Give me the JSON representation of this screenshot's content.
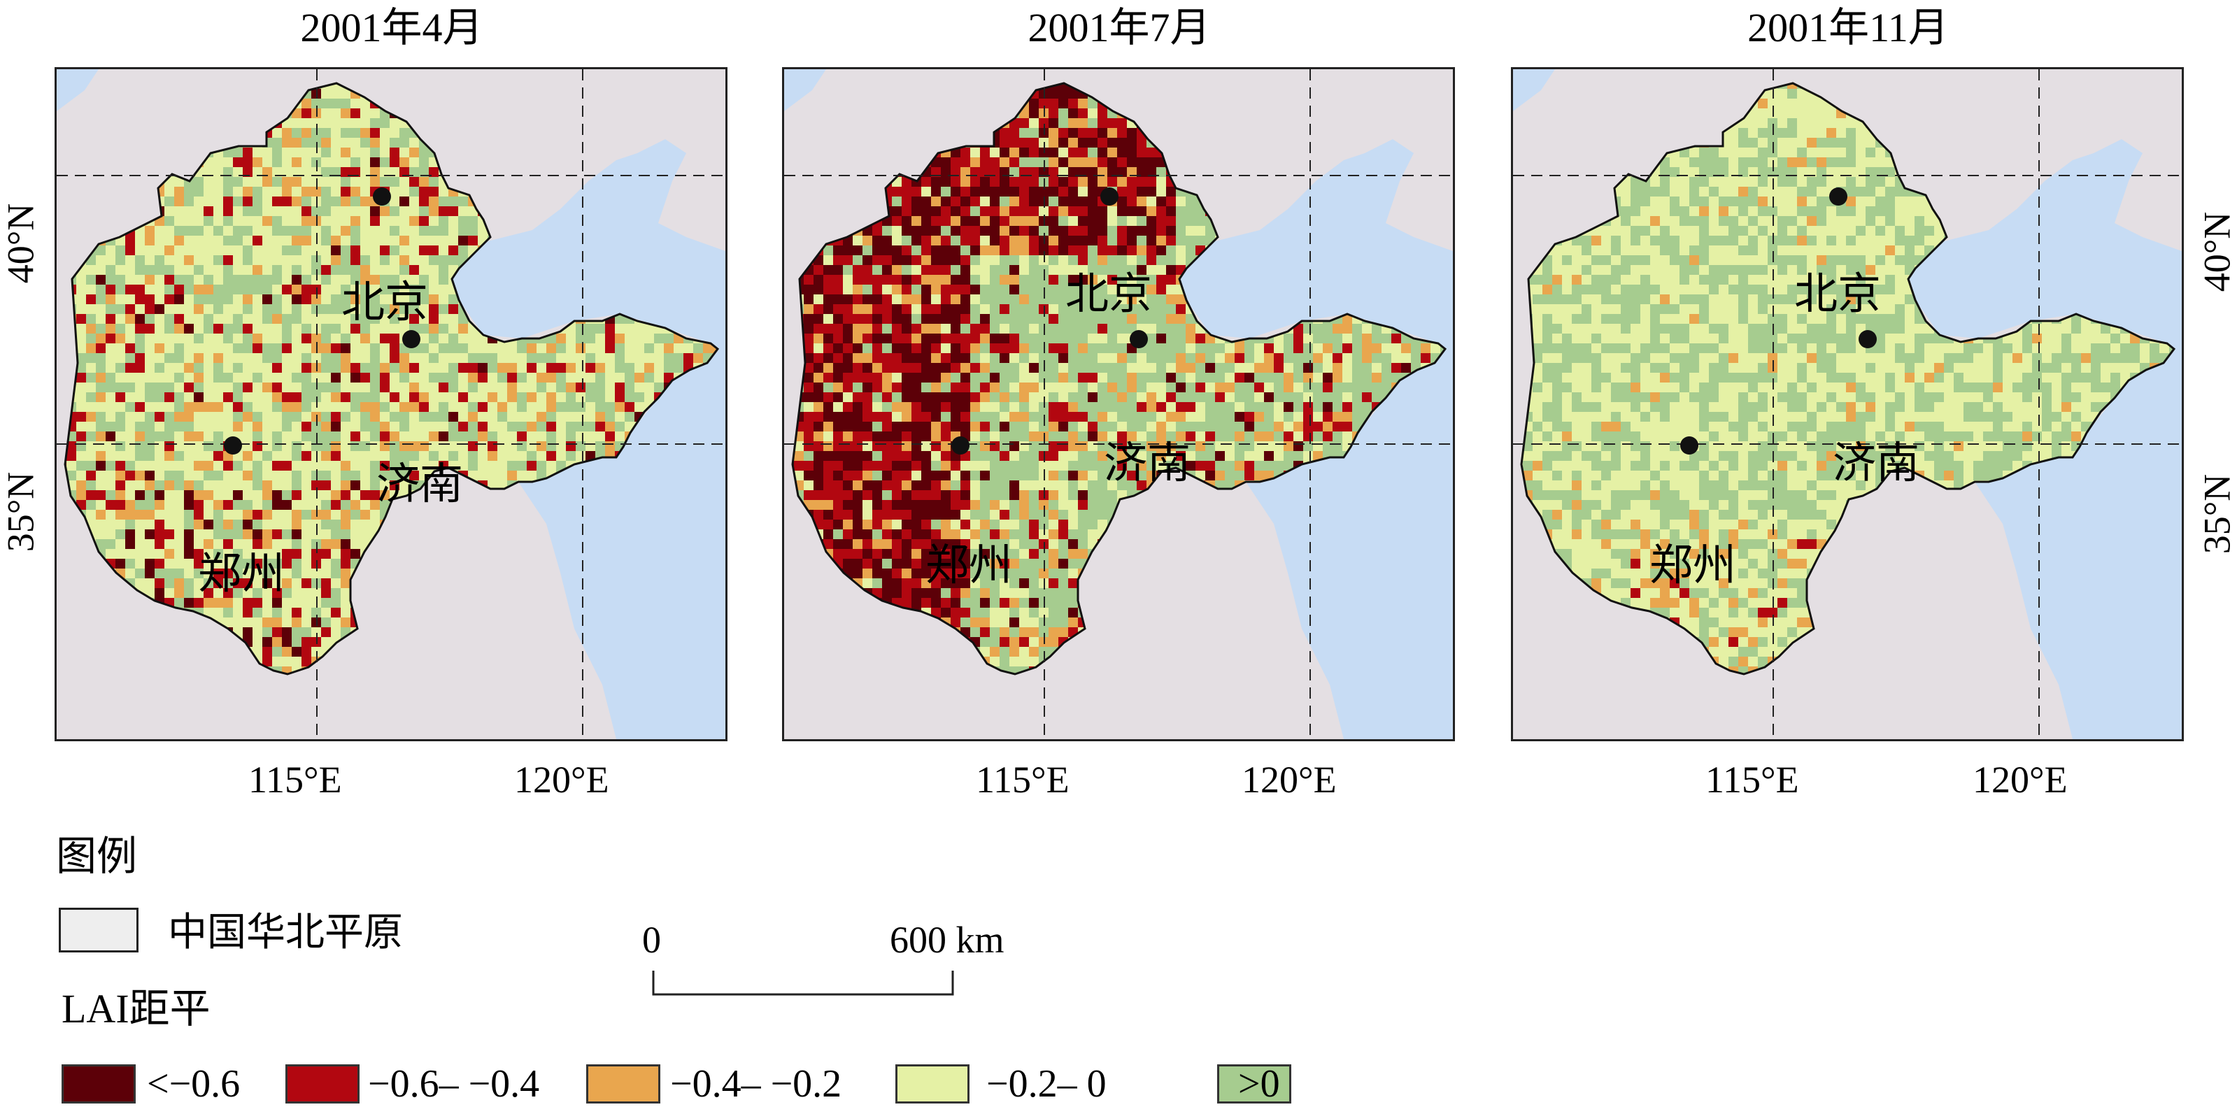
{
  "panels": [
    {
      "title": "2001年4月",
      "cities": [
        "北京",
        "济南",
        "郑州"
      ]
    },
    {
      "title": "2001年7月",
      "cities": [
        "北京",
        "济南",
        "郑州"
      ]
    },
    {
      "title": "2001年11月",
      "cities": [
        "北京",
        "济南",
        "郑州"
      ]
    }
  ],
  "axes": {
    "lon_ticks": [
      "115°E",
      "120°E"
    ],
    "lat_ticks": [
      "40°N",
      "35°N"
    ]
  },
  "legend": {
    "heading": "图例",
    "region_label": "中国华北平原",
    "lai_heading": "LAI距平",
    "classes": [
      {
        "label": "<−0.6",
        "color": "#5c0008"
      },
      {
        "label": "−0.6– −0.4",
        "color": "#b20710"
      },
      {
        "label": "−0.4– −0.2",
        "color": "#e9a64e"
      },
      {
        "label": "−0.2– 0",
        "color": "#e5f1a5"
      },
      {
        "label": ">0",
        "color": "#a6cc8f"
      }
    ]
  },
  "scale_bar": {
    "start": "0",
    "end": "600 km"
  },
  "colors": {
    "sea": "#c7dcf4",
    "land_background": "#e4dfe3",
    "region_fill": "#eeeeee"
  }
}
